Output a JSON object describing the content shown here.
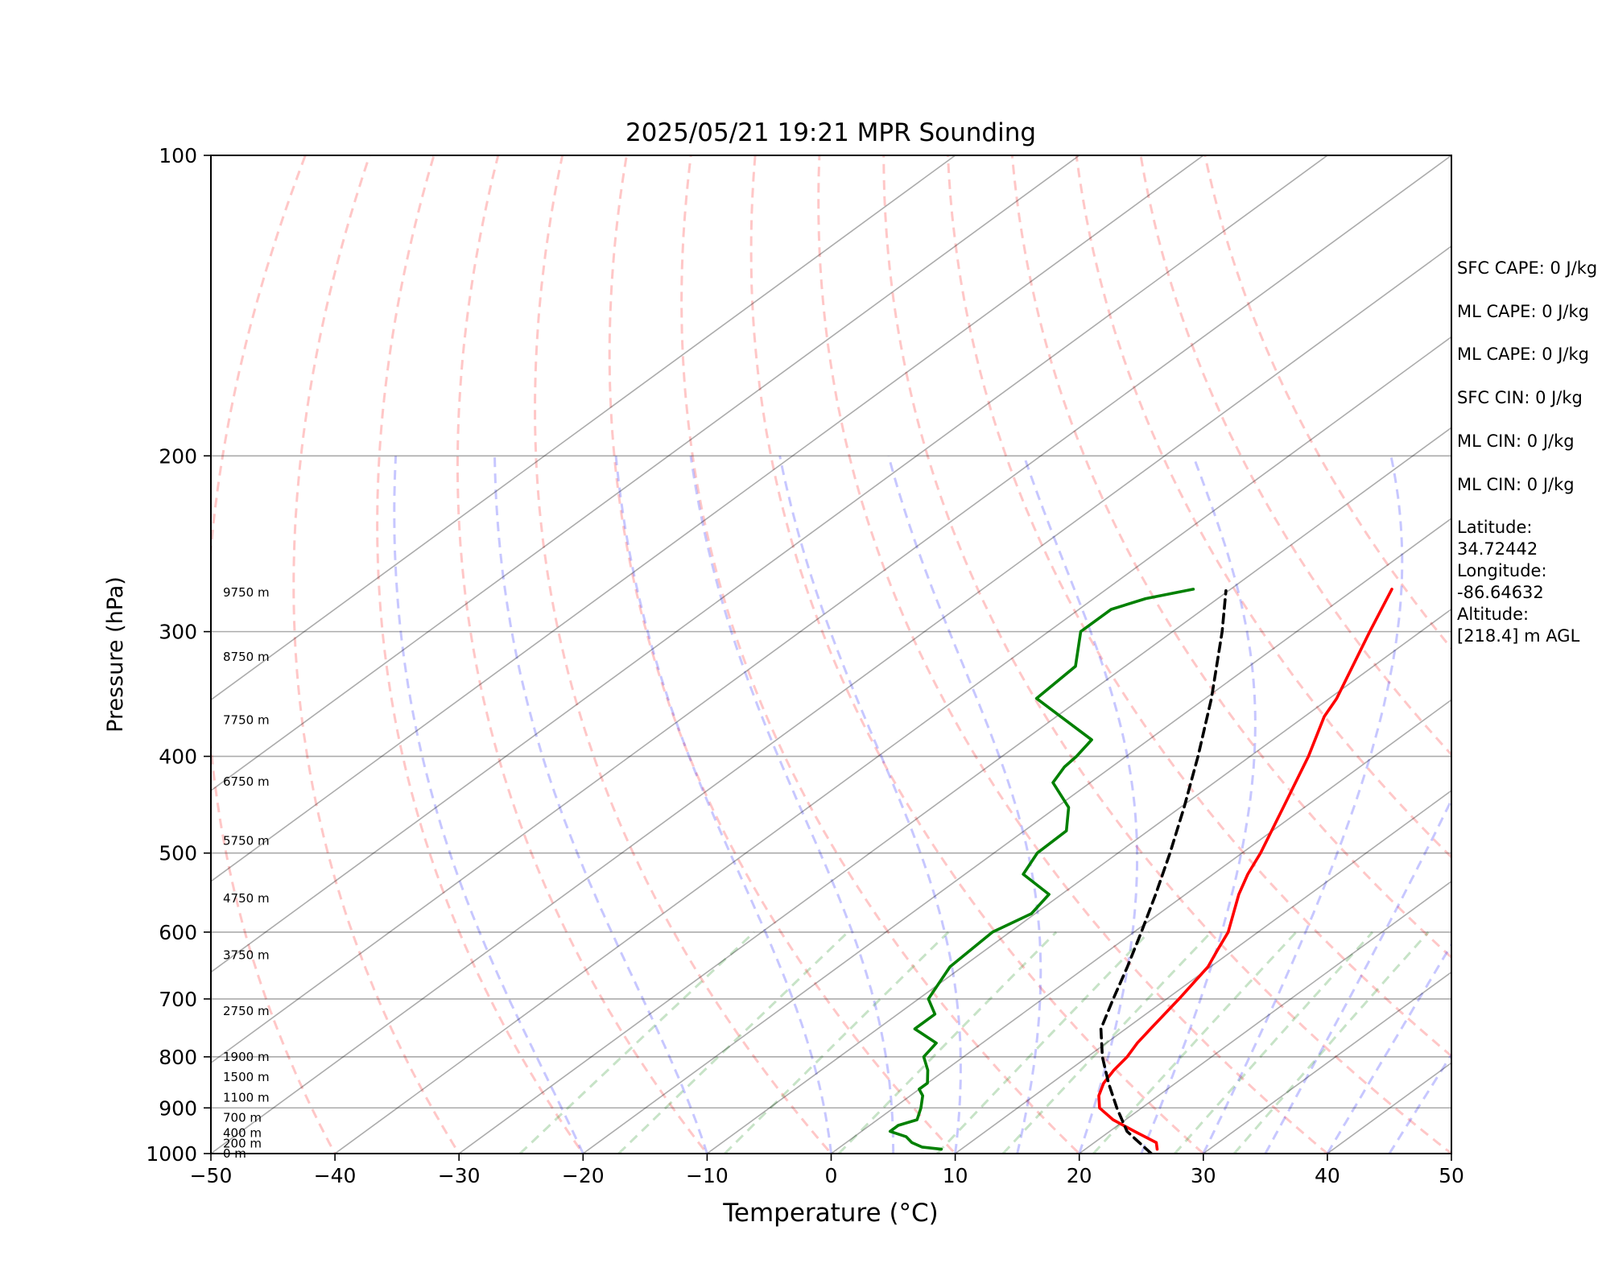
{
  "chart_data": {
    "type": "line",
    "diagram": "Skew-T log-P",
    "title": "2025/05/21 19:21 MPR Sounding",
    "xlabel": "Temperature (°C)",
    "ylabel": "Pressure (hPa)",
    "xlim": [
      -50,
      50
    ],
    "ylim": [
      1000,
      100
    ],
    "yscale": "log",
    "x_ticks": [
      "−50",
      "−40",
      "−30",
      "−20",
      "−10",
      "0",
      "10",
      "20",
      "30",
      "40",
      "50"
    ],
    "y_ticks": [
      "100",
      "200",
      "300",
      "400",
      "500",
      "600",
      "700",
      "800",
      "900",
      "1000"
    ],
    "grid": true,
    "height_labels": [
      {
        "p": 1000,
        "label": "0 m"
      },
      {
        "p": 977,
        "label": "200 m"
      },
      {
        "p": 954,
        "label": "400 m"
      },
      {
        "p": 921,
        "label": "700 m"
      },
      {
        "p": 879,
        "label": "1100 m"
      },
      {
        "p": 838,
        "label": "1500 m"
      },
      {
        "p": 800,
        "label": "1900 m"
      },
      {
        "p": 720,
        "label": "2750 m"
      },
      {
        "p": 633,
        "label": "3750 m"
      },
      {
        "p": 555,
        "label": "4750 m"
      },
      {
        "p": 486,
        "label": "5750 m"
      },
      {
        "p": 424,
        "label": "6750 m"
      },
      {
        "p": 368,
        "label": "7750 m"
      },
      {
        "p": 318,
        "label": "8750 m"
      },
      {
        "p": 274,
        "label": "9750 m"
      }
    ],
    "series": [
      {
        "color": "#ff0000",
        "style": "solid",
        "data": [
          {
            "p": 990,
            "t": 25.8
          },
          {
            "p": 975,
            "t": 25.0
          },
          {
            "p": 950,
            "t": 22.0
          },
          {
            "p": 925,
            "t": 19.0
          },
          {
            "p": 900,
            "t": 16.6
          },
          {
            "p": 875,
            "t": 15.2
          },
          {
            "p": 850,
            "t": 14.2
          },
          {
            "p": 825,
            "t": 13.6
          },
          {
            "p": 800,
            "t": 13.2
          },
          {
            "p": 775,
            "t": 12.5
          },
          {
            "p": 750,
            "t": 12.0
          },
          {
            "p": 700,
            "t": 11.0
          },
          {
            "p": 650,
            "t": 9.8
          },
          {
            "p": 625,
            "t": 8.7
          },
          {
            "p": 600,
            "t": 7.6
          },
          {
            "p": 550,
            "t": 4.3
          },
          {
            "p": 525,
            "t": 2.8
          },
          {
            "p": 500,
            "t": 1.5
          },
          {
            "p": 450,
            "t": -1.7
          },
          {
            "p": 400,
            "t": -5.3
          },
          {
            "p": 365,
            "t": -8.4
          },
          {
            "p": 350,
            "t": -9.4
          },
          {
            "p": 300,
            "t": -14.1
          },
          {
            "p": 272,
            "t": -17.0
          }
        ]
      },
      {
        "color": "#008000",
        "style": "solid",
        "data": [
          {
            "p": 990,
            "t": 8.4
          },
          {
            "p": 985,
            "t": 6.6
          },
          {
            "p": 975,
            "t": 5.3
          },
          {
            "p": 962,
            "t": 4.2
          },
          {
            "p": 950,
            "t": 2.3
          },
          {
            "p": 937,
            "t": 2.3
          },
          {
            "p": 925,
            "t": 3.2
          },
          {
            "p": 900,
            "t": 2.2
          },
          {
            "p": 875,
            "t": 1.0
          },
          {
            "p": 862,
            "t": 0.0
          },
          {
            "p": 850,
            "t": 0.0
          },
          {
            "p": 825,
            "t": -1.4
          },
          {
            "p": 800,
            "t": -3.2
          },
          {
            "p": 775,
            "t": -3.7
          },
          {
            "p": 750,
            "t": -7.0
          },
          {
            "p": 725,
            "t": -7.0
          },
          {
            "p": 700,
            "t": -9.2
          },
          {
            "p": 650,
            "t": -11.0
          },
          {
            "p": 600,
            "t": -11.4
          },
          {
            "p": 575,
            "t": -10.3
          },
          {
            "p": 550,
            "t": -11.0
          },
          {
            "p": 525,
            "t": -15.3
          },
          {
            "p": 500,
            "t": -16.5
          },
          {
            "p": 475,
            "t": -16.6
          },
          {
            "p": 450,
            "t": -19.0
          },
          {
            "p": 425,
            "t": -23.0
          },
          {
            "p": 410,
            "t": -23.8
          },
          {
            "p": 400,
            "t": -24.0
          },
          {
            "p": 385,
            "t": -24.6
          },
          {
            "p": 350,
            "t": -33.6
          },
          {
            "p": 325,
            "t": -34.0
          },
          {
            "p": 300,
            "t": -37.4
          },
          {
            "p": 285,
            "t": -37.4
          },
          {
            "p": 278,
            "t": -35.8
          },
          {
            "p": 272,
            "t": -33.0
          }
        ]
      },
      {
        "color": "#000000",
        "style": "dashed",
        "data": [
          {
            "p": 1000,
            "t": 25.8
          },
          {
            "p": 950,
            "t": 21.4
          },
          {
            "p": 900,
            "t": 18.0
          },
          {
            "p": 850,
            "t": 14.6
          },
          {
            "p": 800,
            "t": 11.2
          },
          {
            "p": 750,
            "t": 8.0
          },
          {
            "p": 700,
            "t": 5.7
          },
          {
            "p": 650,
            "t": 3.3
          },
          {
            "p": 600,
            "t": 0.6
          },
          {
            "p": 550,
            "t": -2.4
          },
          {
            "p": 500,
            "t": -5.8
          },
          {
            "p": 450,
            "t": -9.7
          },
          {
            "p": 400,
            "t": -14.2
          },
          {
            "p": 350,
            "t": -19.5
          },
          {
            "p": 300,
            "t": -26.0
          },
          {
            "p": 273,
            "t": -30.2
          }
        ]
      }
    ],
    "reference_lines": {
      "isotherms_c": [
        -100,
        -90,
        -80,
        -70,
        -60,
        -50,
        -40,
        -30,
        -20,
        -10,
        0,
        10,
        20,
        30,
        40,
        50
      ],
      "dry_adiabats_c": [
        -40,
        -30,
        -20,
        -10,
        0,
        10,
        20,
        30,
        40,
        50,
        60,
        70,
        80,
        90,
        100
      ],
      "moist_adiabats_c": [
        -20,
        -10,
        0,
        5,
        10,
        15,
        20,
        25,
        30,
        35,
        40,
        45
      ],
      "mixing_ratio_gkg": [
        0.5,
        1,
        2,
        4,
        7,
        10,
        16,
        24,
        32
      ]
    }
  },
  "stats": [
    "SFC CAPE: 0 J/kg",
    "ML CAPE: 0 J/kg",
    "ML CAPE: 0 J/kg",
    "SFC CIN: 0 J/kg",
    "ML CIN: 0 J/kg",
    "ML CIN: 0 J/kg",
    "Latitude:\n34.72442",
    "Longitude:\n-86.64632",
    "Altitude:\n[218.4] m AGL"
  ]
}
